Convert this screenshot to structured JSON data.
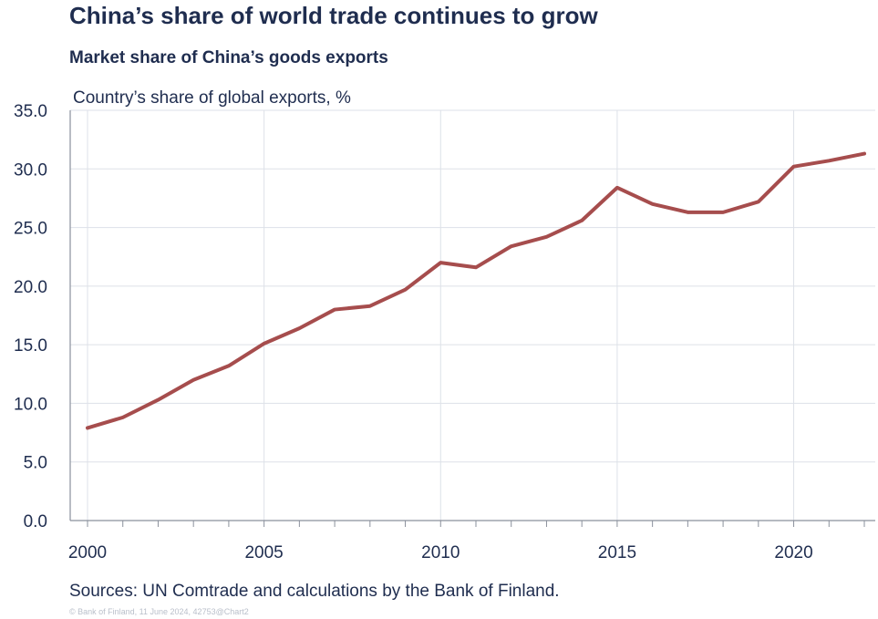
{
  "header": {
    "title": "China’s share of world trade continues to grow",
    "subtitle": "Market share of China’s goods exports"
  },
  "footer": {
    "source": "Sources: UN Comtrade and calculations by the Bank of Finland.",
    "copyright": "© Bank of Finland, 11 June 2024, 42753@Chart2"
  },
  "colors": {
    "line": "#a64d4d",
    "text": "#1f2d4f",
    "grid": "#dde1e8",
    "axis": "#8a909c"
  },
  "chart_data": {
    "type": "line",
    "title": "China’s share of world trade continues to grow",
    "subtitle": "Market share of China’s goods exports",
    "ylabel": "Country’s share of global exports, %",
    "xlabel": "",
    "ylim": [
      0,
      35
    ],
    "yticks": [
      "0.0",
      "5.0",
      "10.0",
      "15.0",
      "20.0",
      "25.0",
      "30.0",
      "35.0"
    ],
    "xticks": [
      "2000",
      "2005",
      "2010",
      "2015",
      "2020"
    ],
    "xlim": [
      2000,
      2022
    ],
    "grid": true,
    "x": [
      2000,
      2001,
      2002,
      2003,
      2004,
      2005,
      2006,
      2007,
      2008,
      2009,
      2010,
      2011,
      2012,
      2013,
      2014,
      2015,
      2016,
      2017,
      2018,
      2019,
      2020,
      2021,
      2022
    ],
    "series": [
      {
        "values": [
          7.9,
          8.8,
          10.3,
          12.0,
          13.2,
          15.1,
          16.4,
          18.0,
          18.3,
          19.7,
          22.0,
          21.6,
          23.4,
          24.2,
          25.6,
          28.4,
          27.0,
          26.3,
          26.3,
          27.2,
          30.2,
          30.7,
          31.3
        ]
      }
    ]
  }
}
